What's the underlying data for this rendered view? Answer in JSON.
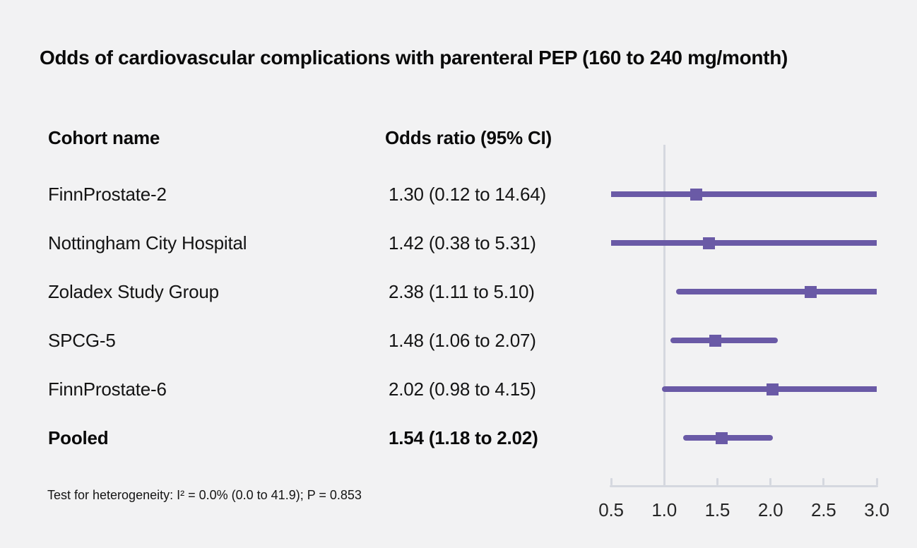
{
  "title": "Odds of cardiovascular complications with parenteral PEP (160 to 240 mg/month)",
  "table": {
    "col1_header": "Cohort name",
    "col2_header": "Odds ratio (95% CI)",
    "rows": [
      {
        "name": "FinnProstate-2",
        "or_text": "1.30 (0.12 to 14.64)",
        "bold": false
      },
      {
        "name": "Nottingham City Hospital",
        "or_text": "1.42 (0.38 to 5.31)",
        "bold": false
      },
      {
        "name": "Zoladex Study Group",
        "or_text": "2.38 (1.11 to 5.10)",
        "bold": false
      },
      {
        "name": "SPCG-5",
        "or_text": "1.48 (1.06 to 2.07)",
        "bold": false
      },
      {
        "name": "FinnProstate-6",
        "or_text": "2.02 (0.98 to 4.15)",
        "bold": false
      },
      {
        "name": "Pooled",
        "or_text": "1.54 (1.18 to 2.02)",
        "bold": true
      }
    ]
  },
  "footnote": "Test for heterogeneity: I² = 0.0% (0.0 to 41.9); P = 0.853",
  "chart_data": {
    "type": "forest",
    "title": "Odds of cardiovascular complications with parenteral PEP (160 to 240 mg/month)",
    "xlim": [
      0.5,
      3.0
    ],
    "reference_line": 1.0,
    "x_ticks": [
      0.5,
      1.0,
      1.5,
      2.0,
      2.5,
      3.0
    ],
    "x_tick_labels": [
      "0.5",
      "1.0",
      "1.5",
      "2.0",
      "2.5",
      "3.0"
    ],
    "grid": false,
    "series": [
      {
        "name": "FinnProstate-2",
        "or": 1.3,
        "ci_low": 0.12,
        "ci_high": 14.64,
        "pooled": false
      },
      {
        "name": "Nottingham City Hospital",
        "or": 1.42,
        "ci_low": 0.38,
        "ci_high": 5.31,
        "pooled": false
      },
      {
        "name": "Zoladex Study Group",
        "or": 2.38,
        "ci_low": 1.11,
        "ci_high": 5.1,
        "pooled": false
      },
      {
        "name": "SPCG-5",
        "or": 1.48,
        "ci_low": 1.06,
        "ci_high": 2.07,
        "pooled": false
      },
      {
        "name": "FinnProstate-6",
        "or": 2.02,
        "ci_low": 0.98,
        "ci_high": 4.15,
        "pooled": false
      },
      {
        "name": "Pooled",
        "or": 1.54,
        "ci_low": 1.18,
        "ci_high": 2.02,
        "pooled": true
      }
    ],
    "heterogeneity": "Test for heterogeneity: I² = 0.0% (0.0 to 41.9); P = 0.853"
  },
  "colors": {
    "background": "#f2f2f3",
    "marker_purple": "#6a5aa6",
    "axis_gray": "#d5d8df",
    "text_dark": "#0a0a0a"
  }
}
